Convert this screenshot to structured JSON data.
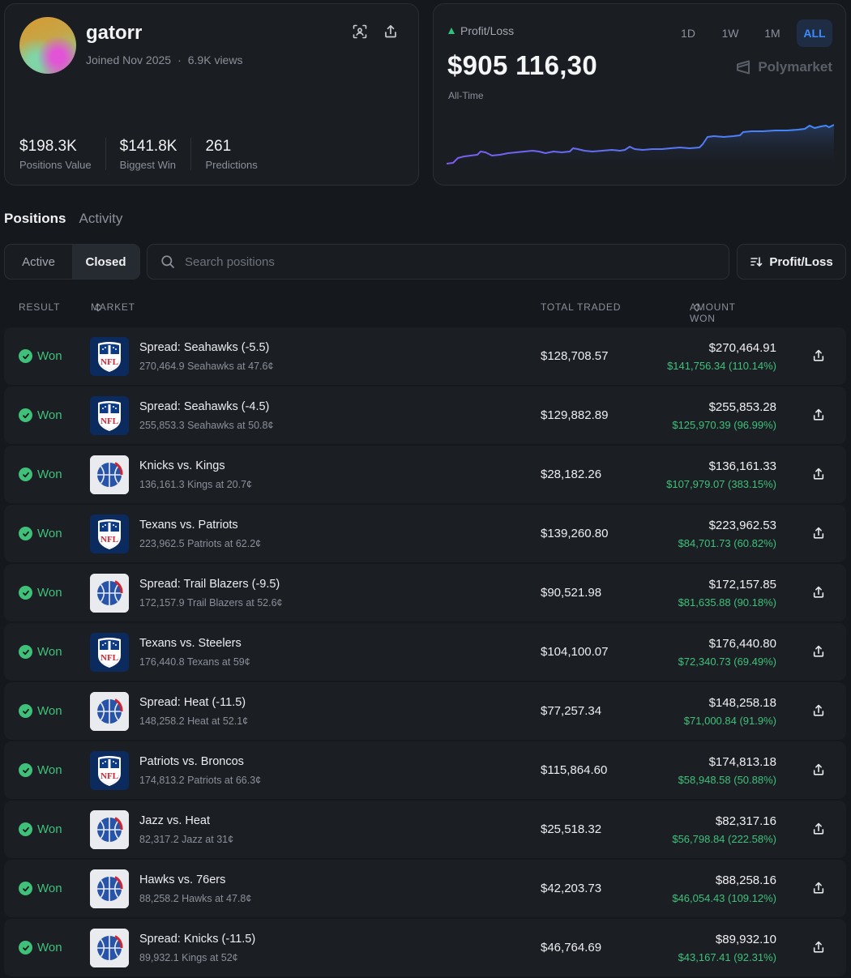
{
  "profile": {
    "username": "gatorr",
    "joined": "Joined Nov 2025",
    "separator": "·",
    "views": "6.9K views",
    "stats": [
      {
        "value": "$198.3K",
        "label": "Positions Value"
      },
      {
        "value": "$141.8K",
        "label": "Biggest Win"
      },
      {
        "value": "261",
        "label": "Predictions"
      }
    ],
    "icons": [
      "scan-icon",
      "share-icon"
    ]
  },
  "pnl": {
    "label": "Profit/Loss",
    "value": "$905 116,30",
    "period": "All-Time",
    "ranges": [
      "1D",
      "1W",
      "1M",
      "ALL"
    ],
    "active_range": "ALL",
    "brand": "Polymarket",
    "colors": {
      "line_start": "#7b5cf0",
      "line_end": "#3d8bfd",
      "positive": "#31c27c"
    }
  },
  "tabs": {
    "positions": "Positions",
    "activity": "Activity",
    "active": "Positions"
  },
  "filters": {
    "active": "Active",
    "closed": "Closed",
    "selected": "Closed",
    "search_placeholder": "Search positions",
    "sort_label": "Profit/Loss"
  },
  "table": {
    "headers": {
      "result": "RESULT",
      "market": "MARKET",
      "traded": "TOTAL TRADED",
      "won": "AMOUNT WON"
    },
    "rows": [
      {
        "result": "Won",
        "league": "nfl",
        "title": "Spread: Seahawks (-5.5)",
        "sub": "270,464.9 Seahawks at 47.6¢",
        "traded": "$128,708.57",
        "won": "$270,464.91",
        "profit": "$141,756.34 (110.14%)"
      },
      {
        "result": "Won",
        "league": "nfl",
        "title": "Spread: Seahawks (-4.5)",
        "sub": "255,853.3 Seahawks at 50.8¢",
        "traded": "$129,882.89",
        "won": "$255,853.28",
        "profit": "$125,970.39 (96.99%)"
      },
      {
        "result": "Won",
        "league": "nba",
        "title": "Knicks vs. Kings",
        "sub": "136,161.3 Kings at 20.7¢",
        "traded": "$28,182.26",
        "won": "$136,161.33",
        "profit": "$107,979.07 (383.15%)"
      },
      {
        "result": "Won",
        "league": "nfl",
        "title": "Texans vs. Patriots",
        "sub": "223,962.5 Patriots at 62.2¢",
        "traded": "$139,260.80",
        "won": "$223,962.53",
        "profit": "$84,701.73 (60.82%)"
      },
      {
        "result": "Won",
        "league": "nba",
        "title": "Spread: Trail Blazers (-9.5)",
        "sub": "172,157.9 Trail Blazers at 52.6¢",
        "traded": "$90,521.98",
        "won": "$172,157.85",
        "profit": "$81,635.88 (90.18%)"
      },
      {
        "result": "Won",
        "league": "nfl",
        "title": "Texans vs. Steelers",
        "sub": "176,440.8 Texans at 59¢",
        "traded": "$104,100.07",
        "won": "$176,440.80",
        "profit": "$72,340.73 (69.49%)"
      },
      {
        "result": "Won",
        "league": "nba",
        "title": "Spread: Heat (-11.5)",
        "sub": "148,258.2 Heat at 52.1¢",
        "traded": "$77,257.34",
        "won": "$148,258.18",
        "profit": "$71,000.84 (91.9%)"
      },
      {
        "result": "Won",
        "league": "nfl",
        "title": "Patriots vs. Broncos",
        "sub": "174,813.2 Patriots at 66.3¢",
        "traded": "$115,864.60",
        "won": "$174,813.18",
        "profit": "$58,948.58 (50.88%)"
      },
      {
        "result": "Won",
        "league": "nba",
        "title": "Jazz vs. Heat",
        "sub": "82,317.2 Jazz at 31¢",
        "traded": "$25,518.32",
        "won": "$82,317.16",
        "profit": "$56,798.84 (222.58%)"
      },
      {
        "result": "Won",
        "league": "nba",
        "title": "Hawks vs. 76ers",
        "sub": "88,258.2 Hawks at 47.8¢",
        "traded": "$42,203.73",
        "won": "$88,258.16",
        "profit": "$46,054.43 (109.12%)"
      },
      {
        "result": "Won",
        "league": "nba",
        "title": "Spread: Knicks (-11.5)",
        "sub": "89,932.1 Kings at 52¢",
        "traded": "$46,764.69",
        "won": "$89,932.10",
        "profit": "$43,167.41 (92.31%)"
      }
    ]
  },
  "colors": {
    "won": "#3fc17a",
    "accent": "#3d8bfd",
    "background": "#15181d",
    "card": "#1a1d22"
  }
}
